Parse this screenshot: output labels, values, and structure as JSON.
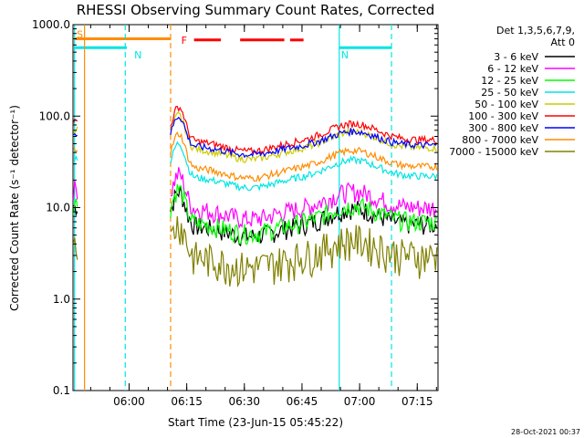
{
  "chart_data": {
    "type": "line",
    "title": "RHESSI Observing Summary Count Rates, Corrected",
    "xlabel": "Start Time (23-Jun-15 05:45:22)",
    "ylabel": "Corrected Count Rate (s⁻¹ detector⁻¹)",
    "yscale": "log",
    "ylim": [
      0.1,
      1000
    ],
    "xlim_minutes": [
      0,
      95
    ],
    "y_ticks": [
      {
        "value": 0.1,
        "label": "0.1"
      },
      {
        "value": 1,
        "label": "1.0"
      },
      {
        "value": 10,
        "label": "10.0"
      },
      {
        "value": 100,
        "label": "100.0"
      },
      {
        "value": 1000,
        "label": "1000.0"
      }
    ],
    "x_ticks": [
      {
        "minute": 14.6,
        "label": "06:00"
      },
      {
        "minute": 29.6,
        "label": "06:15"
      },
      {
        "minute": 44.6,
        "label": "06:30"
      },
      {
        "minute": 59.6,
        "label": "06:45"
      },
      {
        "minute": 74.6,
        "label": "07:00"
      },
      {
        "minute": 89.6,
        "label": "07:15"
      }
    ],
    "legend_header": [
      "Det 1,3,5,6,7,9,",
      "Att 0"
    ],
    "legend_position": "right",
    "series": [
      {
        "name": "3 - 6 keV",
        "color": "#000000",
        "level": 6.5
      },
      {
        "name": "6 - 12 keV",
        "color": "#ff00ff",
        "level": 10
      },
      {
        "name": "12 - 25 keV",
        "color": "#00ff00",
        "level": 7
      },
      {
        "name": "25 - 50 keV",
        "color": "#00e5e5",
        "level": 22
      },
      {
        "name": "50 - 100 keV",
        "color": "#cccc00",
        "level": 45
      },
      {
        "name": "100 - 300 keV",
        "color": "#ff0000",
        "level": 55
      },
      {
        "name": "300 - 800 keV",
        "color": "#0000ff",
        "level": 40
      },
      {
        "name": "800 - 7000 keV",
        "color": "#ff8c00",
        "level": 28
      },
      {
        "name": "7000 - 15000 keV",
        "color": "#808000",
        "level": 3
      }
    ],
    "state_bars": [
      {
        "label": "S",
        "color": "#ff8c00",
        "start": 0.5,
        "end": 25.5,
        "y": 700
      },
      {
        "label": "N",
        "color": "#00e5e5",
        "start": 0.5,
        "end": 14.0,
        "y": 560
      },
      {
        "label": "N",
        "color": "#00e5e5",
        "start": 69.3,
        "end": 83.0,
        "y": 560
      },
      {
        "label": "F",
        "color": "#ff0000",
        "start": 31.5,
        "end": 38.5,
        "y": 680
      },
      {
        "label": "",
        "color": "#ff0000",
        "start": 43.5,
        "end": 55.0,
        "y": 680
      },
      {
        "label": "",
        "color": "#ff0000",
        "start": 56.5,
        "end": 60.0,
        "y": 680
      }
    ],
    "vertical_markers": [
      {
        "minute": 0.4,
        "color": "#00e5e5",
        "style": "solid"
      },
      {
        "minute": 3.0,
        "color": "#ff8c00",
        "style": "solid"
      },
      {
        "minute": 13.6,
        "color": "#00e5e5",
        "style": "dashed"
      },
      {
        "minute": 25.4,
        "color": "#ff8c00",
        "style": "dashed"
      },
      {
        "minute": 69.3,
        "color": "#00e5e5",
        "style": "solid"
      },
      {
        "minute": 82.9,
        "color": "#00e5e5",
        "style": "dashed"
      }
    ]
  },
  "footer": {
    "timestamp": "28-Oct-2021 00:37"
  }
}
